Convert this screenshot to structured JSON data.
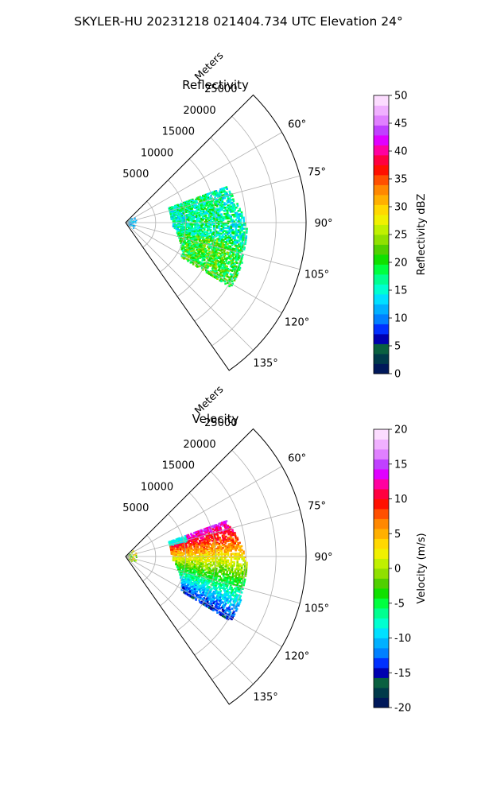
{
  "figure": {
    "suptitle": "SKYLER-HU  20231218  021404.734 UTC Elevation 24°"
  },
  "chart_data": [
    {
      "type": "heatmap",
      "projection": "polar-sector",
      "title": "Reflectivity",
      "radial_label": "Meters",
      "radial_ticks": [
        5000,
        10000,
        15000,
        20000,
        25000
      ],
      "radial_tick_labels": [
        "5000",
        "10000",
        "15000",
        "20000",
        "25000"
      ],
      "range_max": 30000,
      "angle_range": [
        45,
        145
      ],
      "angle_ticks": [
        60,
        75,
        90,
        105,
        120,
        135
      ],
      "angle_tick_labels": [
        "60°",
        "75°",
        "90°",
        "105°",
        "120°",
        "135°"
      ],
      "grid": true,
      "colorbar": {
        "label": "Reflectivity dBZ",
        "range": [
          0,
          50
        ],
        "ticks": [
          0,
          5,
          10,
          15,
          20,
          25,
          30,
          35,
          40,
          45,
          50
        ],
        "tick_labels": [
          "0",
          "5",
          "10",
          "15",
          "20",
          "25",
          "30",
          "35",
          "40",
          "45",
          "50"
        ],
        "colors": [
          "#00185a",
          "#003a4a",
          "#0a6040",
          "#0000b0",
          "#0030ff",
          "#0080ff",
          "#00b0ff",
          "#00e0ff",
          "#00ffd0",
          "#00ff90",
          "#00ff40",
          "#10e000",
          "#50d000",
          "#90e000",
          "#c0f000",
          "#f0f000",
          "#ffd800",
          "#ffb000",
          "#ff8800",
          "#ff5000",
          "#ff1000",
          "#ff0040",
          "#ff00a0",
          "#e000ff",
          "#c040ff",
          "#e080ff",
          "#f0b0ff",
          "#fcdcff"
        ]
      },
      "echo_summary": "Echoes from about 8000 to 21000 m between 70° and 120°; mostly 10–22 dBZ"
    },
    {
      "type": "heatmap",
      "projection": "polar-sector",
      "title": "Velocity",
      "radial_label": "Meters",
      "radial_ticks": [
        5000,
        10000,
        15000,
        20000,
        25000
      ],
      "radial_tick_labels": [
        "5000",
        "10000",
        "15000",
        "20000",
        "25000"
      ],
      "range_max": 30000,
      "angle_range": [
        45,
        145
      ],
      "angle_ticks": [
        60,
        75,
        90,
        105,
        120,
        135
      ],
      "angle_tick_labels": [
        "60°",
        "75°",
        "90°",
        "105°",
        "120°",
        "135°"
      ],
      "grid": true,
      "colorbar": {
        "label": "Velocity (m/s)",
        "range": [
          -20,
          20
        ],
        "ticks": [
          -20,
          -15,
          -10,
          -5,
          0,
          5,
          10,
          15,
          20
        ],
        "tick_labels": [
          "-20",
          "-15",
          "-10",
          "-5",
          "0",
          "5",
          "10",
          "15",
          "20"
        ],
        "colors": [
          "#00185a",
          "#003a4a",
          "#0a6040",
          "#0000b0",
          "#0030ff",
          "#0080ff",
          "#00b0ff",
          "#00e0ff",
          "#00ffd0",
          "#00ff90",
          "#00ff40",
          "#10e000",
          "#50d000",
          "#90e000",
          "#c0f000",
          "#f0f000",
          "#ffd800",
          "#ffb000",
          "#ff8800",
          "#ff5000",
          "#ff1000",
          "#ff0040",
          "#ff00a0",
          "#e000ff",
          "#c040ff",
          "#e080ff",
          "#f0b0ff",
          "#fcdcff"
        ]
      },
      "echo_summary": "Positive velocities (+5 to +15 m/s) near 75–90°, negative (−5 to −15 m/s) near 105–120°"
    }
  ]
}
